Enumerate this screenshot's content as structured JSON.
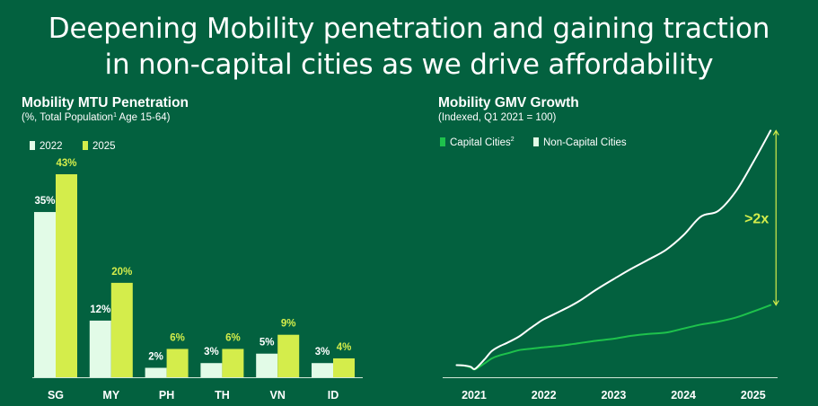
{
  "slide": {
    "title_line1": "Deepening Mobility penetration and gaining traction",
    "title_line2": "in non-capital cities as we drive affordability"
  },
  "colors": {
    "background": "#03613f",
    "bar_2022": "#e2fbe7",
    "bar_2025": "#d4ed4b",
    "line_capital": "#1ec24c",
    "line_non_capital": "#ffffff",
    "axis": "#cfe7d8",
    "bracket": "#d4ed4b"
  },
  "left_chart": {
    "title": "Mobility MTU Penetration",
    "subtitle_prefix": "(%, Total Population",
    "subtitle_sup": "1",
    "subtitle_suffix": " Age 15-64)"
  },
  "right_chart": {
    "title": "Mobility GMV Growth",
    "subtitle": "(Indexed, Q1 2021 = 100)",
    "callout": ">2x"
  },
  "chart_data": [
    {
      "type": "bar",
      "title": "Mobility MTU Penetration",
      "subtitle": "(%, Total Population1 Age 15-64)",
      "categories": [
        "SG",
        "MY",
        "PH",
        "TH",
        "VN",
        "ID"
      ],
      "series": [
        {
          "name": "2022",
          "values": [
            35,
            12,
            2,
            3,
            5,
            3
          ],
          "labels": [
            "35%",
            "12%",
            "2%",
            "3%",
            "5%",
            "3%"
          ]
        },
        {
          "name": "2025",
          "values": [
            43,
            20,
            6,
            6,
            9,
            4
          ],
          "labels": [
            "43%",
            "20%",
            "6%",
            "6%",
            "9%",
            "4%"
          ]
        }
      ],
      "ylim": [
        0,
        43
      ],
      "grid": false,
      "legend": "top-left"
    },
    {
      "type": "line",
      "title": "Mobility GMV Growth",
      "subtitle": "(Indexed, Q1 2021 = 100)",
      "x": [
        2020.75,
        2020.85,
        2020.95,
        2021.0,
        2021.05,
        2021.15,
        2021.25,
        2021.35,
        2021.5,
        2021.65,
        2021.8,
        2021.9,
        2022.0,
        2022.25,
        2022.5,
        2022.75,
        2023.0,
        2023.25,
        2023.5,
        2023.75,
        2024.0,
        2024.25,
        2024.5,
        2024.75,
        2025.0,
        2025.25
      ],
      "series": [
        {
          "name": "Capital Cities",
          "name_sup": "2",
          "values": [
            100,
            99,
            94,
            89,
            93,
            104,
            116,
            123,
            130,
            137,
            140,
            142,
            144,
            148,
            154,
            160,
            165,
            172,
            177,
            180,
            190,
            200,
            207,
            217,
            232,
            248
          ]
        },
        {
          "name": "Non-Capital Cities",
          "values": [
            100,
            99,
            96,
            90,
            96,
            114,
            134,
            145,
            157,
            171,
            190,
            202,
            213,
            234,
            257,
            286,
            312,
            337,
            360,
            384,
            420,
            466,
            480,
            528,
            600,
            678
          ]
        }
      ],
      "xticks": [
        "2021",
        "2022",
        "2023",
        "2024",
        "2025"
      ],
      "xtick_values": [
        2021,
        2022,
        2023,
        2024,
        2025
      ],
      "ylim": [
        70,
        690
      ],
      "xlim": [
        2020.55,
        2025.35
      ],
      "grid": false,
      "legend": "top-left",
      "annotation": ">2x"
    }
  ]
}
